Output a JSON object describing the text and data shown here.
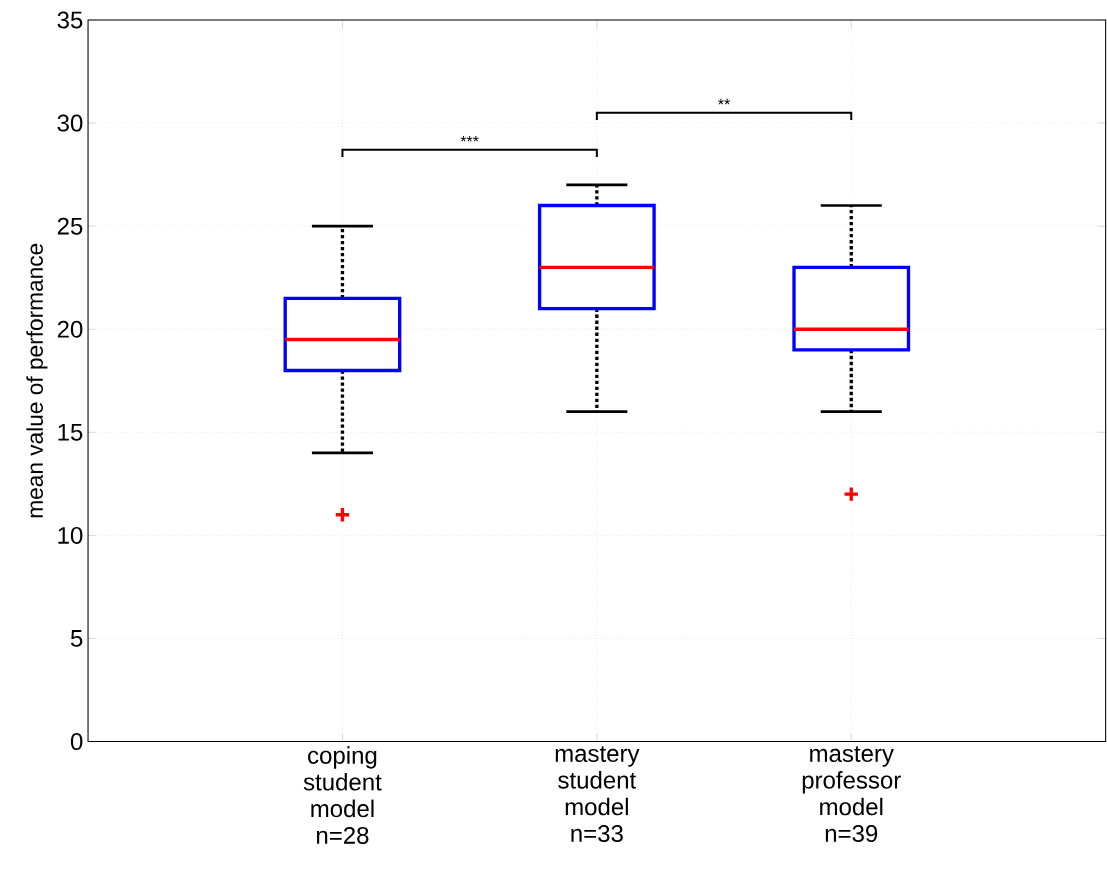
{
  "chart_data": {
    "type": "box",
    "ylabel": "mean value of performance",
    "categories": [
      "coping student model n=28",
      "mastery student model n=33",
      "mastery professor model n=39"
    ],
    "boxes": [
      {
        "low": 14,
        "q1": 18,
        "median": 19.5,
        "q3": 21.5,
        "high": 25,
        "outliers": [
          11
        ]
      },
      {
        "low": 16,
        "q1": 21,
        "median": 23,
        "q3": 26,
        "high": 27
      },
      {
        "low": 16,
        "q1": 19,
        "median": 20,
        "q3": 23,
        "high": 26,
        "outliers": [
          12
        ]
      }
    ],
    "ylim": [
      0,
      35
    ],
    "yticks": [
      0,
      5,
      10,
      15,
      20,
      25,
      30,
      35
    ],
    "grid": true,
    "annotations": [
      "***",
      "**"
    ]
  }
}
